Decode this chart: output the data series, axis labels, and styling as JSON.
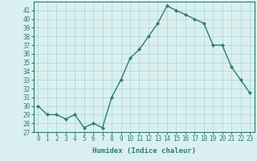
{
  "x": [
    0,
    1,
    2,
    3,
    4,
    5,
    6,
    7,
    8,
    9,
    10,
    11,
    12,
    13,
    14,
    15,
    16,
    17,
    18,
    19,
    20,
    21,
    22,
    23
  ],
  "y": [
    30,
    29,
    29,
    28.5,
    29,
    27.5,
    28,
    27.5,
    31,
    33,
    35.5,
    36.5,
    38,
    39.5,
    41.5,
    41,
    40.5,
    40,
    39.5,
    37,
    37,
    34.5,
    33,
    31.5
  ],
  "line_color": "#2e7d6e",
  "marker": "D",
  "marker_size": 2.0,
  "bg_color": "#daf0f0",
  "grid_color": "#a8d5d5",
  "xlabel": "Humidex (Indice chaleur)",
  "xlim": [
    -0.5,
    23.5
  ],
  "ylim": [
    27,
    42
  ],
  "yticks": [
    27,
    28,
    29,
    30,
    31,
    32,
    33,
    34,
    35,
    36,
    37,
    38,
    39,
    40,
    41
  ],
  "xticks": [
    0,
    1,
    2,
    3,
    4,
    5,
    6,
    7,
    8,
    9,
    10,
    11,
    12,
    13,
    14,
    15,
    16,
    17,
    18,
    19,
    20,
    21,
    22,
    23
  ],
  "tick_fontsize": 5.5,
  "label_fontsize": 6.5,
  "line_width": 1.0
}
